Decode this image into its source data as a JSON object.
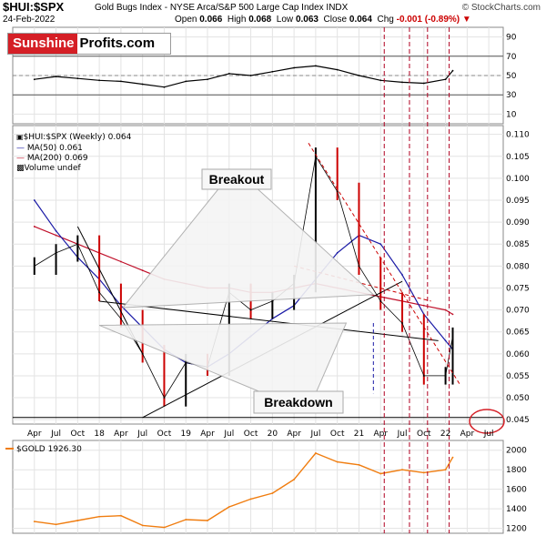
{
  "header": {
    "symbol": "$HUI:$SPX",
    "description": "Gold Bugs Index - NYSE Arca/S&P 500 Large Cap Index  INDX",
    "source": "© StockCharts.com",
    "date": "24-Feb-2022",
    "open_label": "Open",
    "open": "0.066",
    "high_label": "High",
    "high": "0.068",
    "low_label": "Low",
    "low": "0.063",
    "close_label": "Close",
    "close": "0.064",
    "chg_label": "Chg",
    "chg": "-0.001 (-0.89%)"
  },
  "logo": {
    "part1": "Sunshine",
    "part2": "Profits.com"
  },
  "legend": {
    "main": "$HUI:$SPX (Weekly) 0.064",
    "ma50": "MA(50) 0.061",
    "ma200": "MA(200) 0.069",
    "volume": "Volume undef"
  },
  "annotations": {
    "breakout": "Breakout",
    "breakdown": "Breakdown"
  },
  "colors": {
    "price_up": "#000000",
    "price_down": "#cc0000",
    "ma50": "#1a1aa6",
    "ma200": "#c0102a",
    "rsi": "#000000",
    "gold": "#f07d10",
    "highlight": "#d51f26",
    "vline_red": "#b00020",
    "vline_blue": "#1a1aa6"
  },
  "chart_data": [
    {
      "type": "line",
      "panel": "rsi",
      "ylim": [
        0,
        100
      ],
      "ticks": [
        10,
        30,
        50,
        70,
        90
      ],
      "tick_labels": [
        "10",
        "30",
        "50",
        "70",
        "90"
      ],
      "reference_lines": [
        30,
        50,
        70
      ],
      "x": [
        "2017-04",
        "2017-07",
        "2017-10",
        "2018-01",
        "2018-04",
        "2018-07",
        "2018-10",
        "2019-01",
        "2019-04",
        "2019-07",
        "2019-10",
        "2020-01",
        "2020-04",
        "2020-07",
        "2020-10",
        "2021-01",
        "2021-04",
        "2021-07",
        "2021-10",
        "2022-01",
        "2022-02"
      ],
      "values": [
        46,
        49,
        47,
        45,
        44,
        41,
        38,
        44,
        46,
        52,
        50,
        54,
        58,
        60,
        56,
        50,
        45,
        43,
        42,
        46,
        55
      ]
    },
    {
      "type": "line",
      "panel": "price",
      "ylim": [
        0.044,
        0.112
      ],
      "ticks": [
        0.045,
        0.05,
        0.055,
        0.06,
        0.065,
        0.07,
        0.075,
        0.08,
        0.085,
        0.09,
        0.095,
        0.1,
        0.105,
        0.11
      ],
      "tick_labels": [
        "0.045",
        "0.050",
        "0.055",
        "0.060",
        "0.065",
        "0.070",
        "0.075",
        "0.080",
        "0.085",
        "0.090",
        "0.095",
        "0.100",
        "0.105",
        "0.110"
      ],
      "x_labels": [
        "Apr",
        "Jul",
        "Oct",
        "18",
        "Apr",
        "Jul",
        "Oct",
        "19",
        "Apr",
        "Jul",
        "Oct",
        "20",
        "Apr",
        "Jul",
        "Oct",
        "21",
        "Apr",
        "Jul",
        "Oct",
        "22",
        "Apr",
        "Jul"
      ],
      "x": [
        "2017-04",
        "2017-07",
        "2017-10",
        "2018-01",
        "2018-04",
        "2018-07",
        "2018-10",
        "2019-01",
        "2019-04",
        "2019-07",
        "2019-10",
        "2020-01",
        "2020-04",
        "2020-07",
        "2020-10",
        "2021-01",
        "2021-04",
        "2021-07",
        "2021-10",
        "2022-01",
        "2022-02"
      ],
      "series": [
        {
          "name": "$HUI:$SPX",
          "values": [
            0.08,
            0.083,
            0.085,
            0.074,
            0.068,
            0.06,
            0.05,
            0.058,
            0.057,
            0.074,
            0.07,
            0.072,
            0.076,
            0.105,
            0.097,
            0.08,
            0.072,
            0.067,
            0.055,
            0.055,
            0.064
          ]
        },
        {
          "name": "MA(50)",
          "values": [
            0.095,
            0.088,
            0.082,
            0.077,
            0.071,
            0.066,
            0.061,
            0.058,
            0.057,
            0.06,
            0.064,
            0.068,
            0.071,
            0.077,
            0.083,
            0.087,
            0.085,
            0.078,
            0.069,
            0.063,
            0.061
          ]
        },
        {
          "name": "MA(200)",
          "values": [
            0.089,
            0.087,
            0.085,
            0.083,
            0.081,
            0.079,
            0.077,
            0.076,
            0.075,
            0.075,
            0.074,
            0.074,
            0.075,
            0.076,
            0.075,
            0.074,
            0.073,
            0.072,
            0.071,
            0.07,
            0.069
          ]
        }
      ]
    },
    {
      "type": "line",
      "panel": "gold",
      "ylim": [
        1150,
        2100
      ],
      "ticks": [
        1200,
        1400,
        1600,
        1800,
        2000
      ],
      "tick_labels": [
        "1200",
        "1400",
        "1600",
        "1800",
        "2000"
      ],
      "x": [
        "2017-04",
        "2017-07",
        "2017-10",
        "2018-01",
        "2018-04",
        "2018-07",
        "2018-10",
        "2019-01",
        "2019-04",
        "2019-07",
        "2019-10",
        "2020-01",
        "2020-04",
        "2020-07",
        "2020-10",
        "2021-01",
        "2021-04",
        "2021-07",
        "2021-10",
        "2022-01",
        "2022-02"
      ],
      "series": [
        {
          "name": "$GOLD 1926.30",
          "values": [
            1270,
            1240,
            1280,
            1320,
            1330,
            1230,
            1210,
            1290,
            1280,
            1420,
            1500,
            1560,
            1700,
            1970,
            1880,
            1850,
            1760,
            1800,
            1770,
            1800,
            1926
          ]
        }
      ]
    }
  ]
}
